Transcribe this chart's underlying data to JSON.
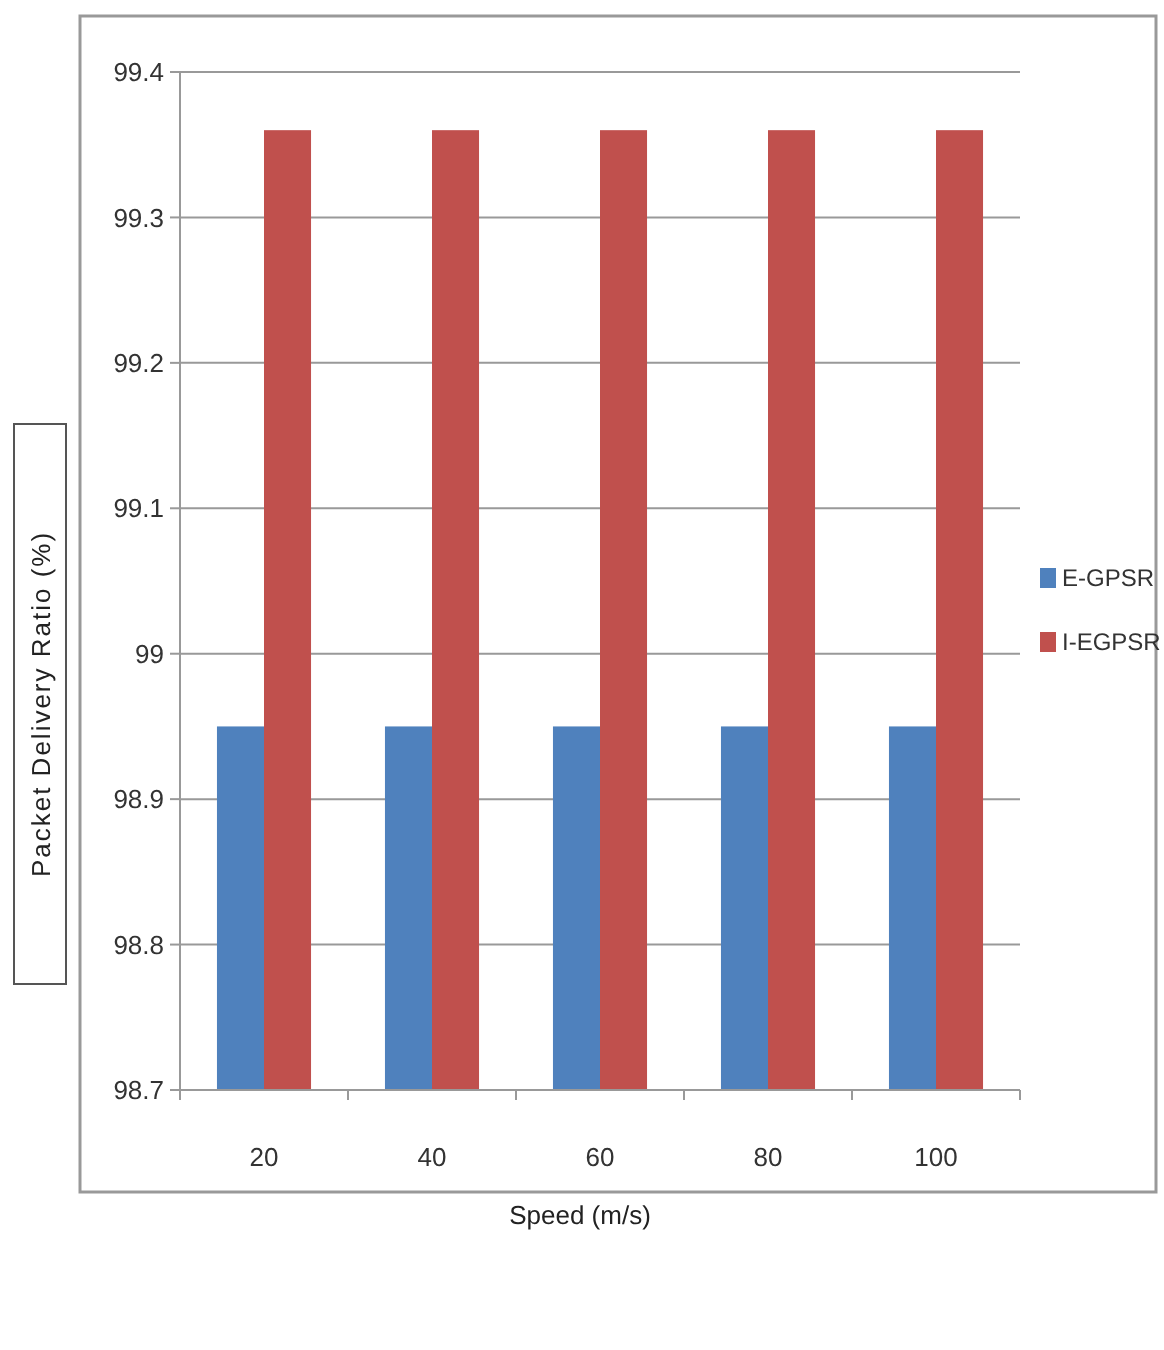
{
  "chart_data": {
    "type": "bar",
    "xlabel": "Speed (m/s)",
    "ylabel": "Packet Delivery Ratio (%)",
    "categories": [
      "20",
      "40",
      "60",
      "80",
      "100"
    ],
    "series": [
      {
        "name": "E-GPSR",
        "color": "#4f81bd",
        "values": [
          98.95,
          98.95,
          98.95,
          98.95,
          98.95
        ]
      },
      {
        "name": "I-EGPSR",
        "color": "#c0504d",
        "values": [
          99.36,
          99.36,
          99.36,
          99.36,
          99.36
        ]
      }
    ],
    "ylim": [
      98.7,
      99.4
    ],
    "yticks": [
      98.7,
      98.8,
      98.9,
      {
        "value": 99,
        "label": "99"
      },
      99.1,
      99.2,
      99.3,
      99.4
    ],
    "grid": "y",
    "legend": "right"
  }
}
